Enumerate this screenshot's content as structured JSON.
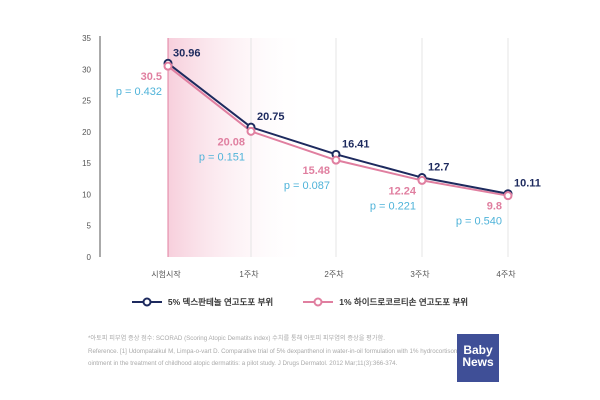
{
  "chart_data": {
    "type": "line",
    "categories": [
      "시험시작",
      "1주차",
      "2주차",
      "3주차",
      "4주차"
    ],
    "ylim": [
      0,
      35
    ],
    "yticks": [
      0,
      5,
      10,
      15,
      20,
      25,
      30,
      35
    ],
    "grid": "vertical",
    "legend_position": "bottom",
    "series": [
      {
        "name": "5% 덱스판테놀 연고도포 부위",
        "values": [
          30.96,
          20.75,
          16.41,
          12.7,
          10.11
        ],
        "labels": [
          "30.96",
          "20.75",
          "16.41",
          "12.7",
          "10.11"
        ],
        "color": "#1d2a5e"
      },
      {
        "name": "1% 하이드로코르티손 연고도포 부위",
        "values": [
          30.5,
          20.08,
          15.48,
          12.24,
          9.8
        ],
        "labels": [
          "30.5",
          "20.08",
          "15.48",
          "12.24",
          "9.8"
        ],
        "color": "#e07fa0"
      }
    ],
    "annotations": [
      "p = 0.432",
      "p = 0.151",
      "p = 0.087",
      "p = 0.221",
      "p = 0.540"
    ],
    "annotation_color": "#4fb3d9"
  },
  "notes": {
    "line1": "*아토피 피부염 증상 점수: SCORAD (Scoring Atopic Dematits index) 수치를 통해 아토피 피부염의 증상을 평가함.",
    "line2": "Reference. [1] Udompataikul M, Limpa-o-vart D. Comparative trial of 5% dexpanthenol in water-in-oil formulation with 1% hydrocortisone",
    "line3": "ointment in the treatment of childhood atopic dermatitis: a pilot study. J Drugs Dermatol. 2012 Mar;11(3):366-374."
  },
  "logo": {
    "line1": "Baby",
    "line2": "News"
  }
}
